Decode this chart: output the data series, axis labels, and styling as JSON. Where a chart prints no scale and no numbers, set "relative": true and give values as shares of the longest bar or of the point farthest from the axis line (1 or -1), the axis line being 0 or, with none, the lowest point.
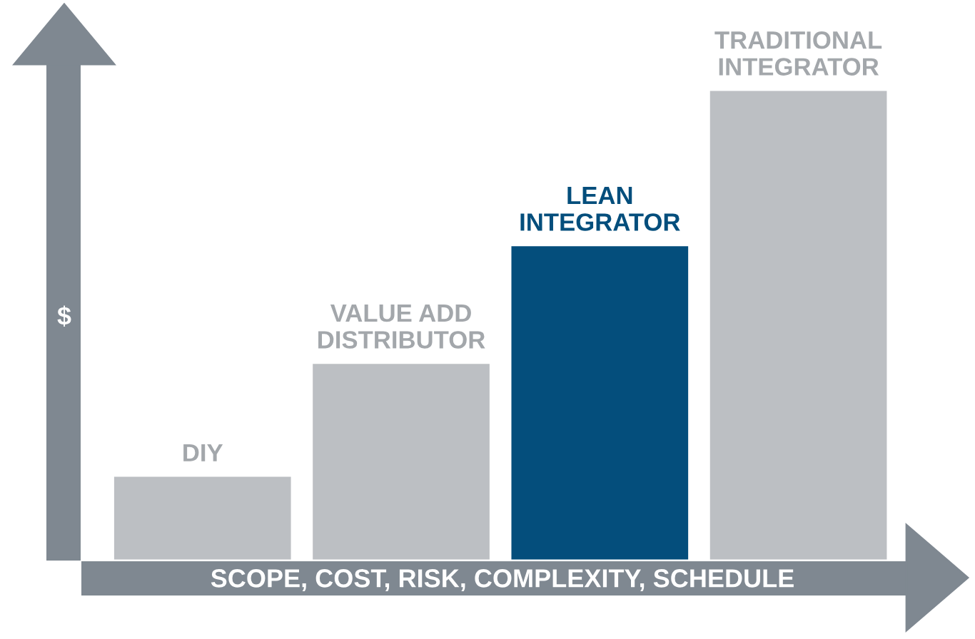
{
  "chart_data": {
    "type": "bar",
    "relative": true,
    "xlabel": "SCOPE, COST, RISK, COMPLEXITY, SCHEDULE",
    "ylabel": "$",
    "categories": [
      "DIY",
      "VALUE ADD\nDISTRIBUTOR",
      "LEAN\nINTEGRATOR",
      "TRADITIONAL\nINTEGRATOR"
    ],
    "values": [
      0.18,
      0.42,
      0.67,
      1
    ],
    "colors": [
      "#bcbfc3",
      "#bcbfc3",
      "#044e7c",
      "#bcbfc3"
    ],
    "legend": false
  }
}
